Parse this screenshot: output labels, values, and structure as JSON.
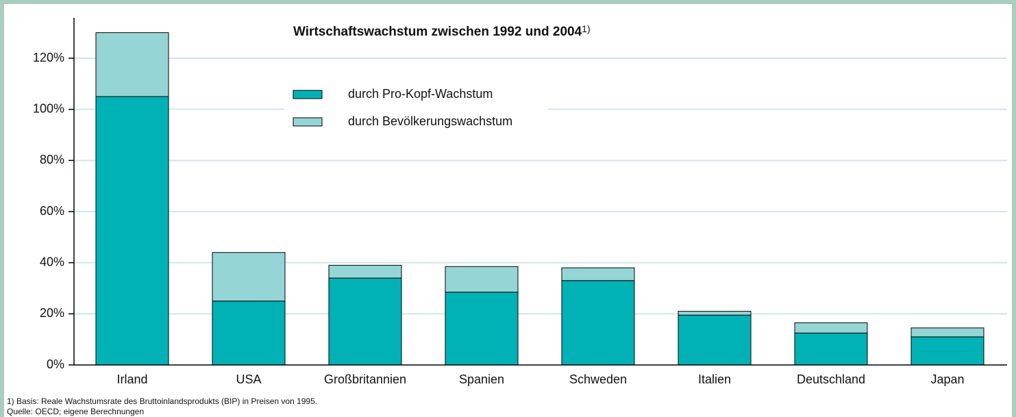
{
  "chart_data": {
    "type": "stacked_bar",
    "title": "Wirtschaftswachstum zwischen 1992 und 2004",
    "title_footnote_mark": "1)",
    "categories": [
      "Irland",
      "USA",
      "Großbritannien",
      "Spanien",
      "Schweden",
      "Italien",
      "Deutschland",
      "Japan"
    ],
    "series": [
      {
        "name": "durch Pro-Kopf-Wachstum",
        "color": "#00b2b5",
        "values": [
          105,
          25,
          34,
          28.5,
          33,
          19.5,
          12.5,
          11
        ]
      },
      {
        "name": "durch Bevölkerungswachstum",
        "color": "#96d5d6",
        "values": [
          25,
          19,
          5,
          10,
          5,
          1.5,
          4,
          3.5
        ]
      }
    ],
    "ylim": [
      0,
      120
    ],
    "yticks": [
      {
        "value": 0,
        "label": "0%"
      },
      {
        "value": 20,
        "label": "20%"
      },
      {
        "value": 40,
        "label": "40%"
      },
      {
        "value": 60,
        "label": "60%"
      },
      {
        "value": 80,
        "label": "80%"
      },
      {
        "value": 100,
        "label": "100%"
      },
      {
        "value": 120,
        "label": "120%"
      }
    ],
    "grid": true,
    "footnotes": [
      "1) Basis: Reale Wachstumsrate des Bruttoinlandsprodukts (BIP) in Preisen von 1995.",
      "Quelle: OECD; eigene Berechnungen"
    ]
  }
}
